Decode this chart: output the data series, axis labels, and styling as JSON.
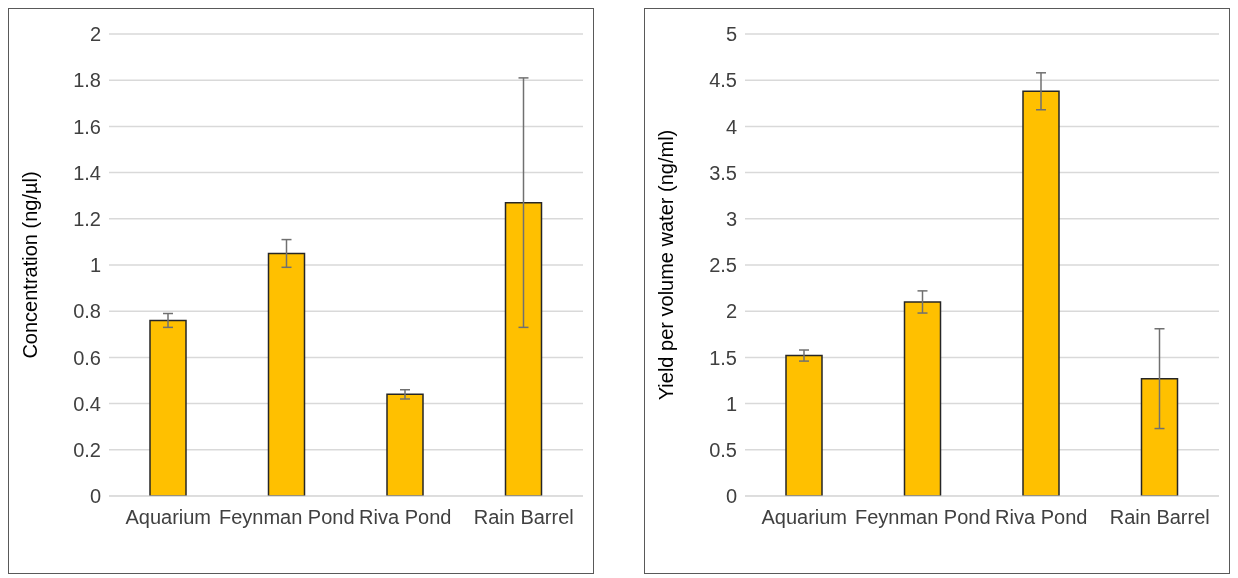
{
  "chart_data": [
    {
      "type": "bar",
      "categories": [
        "Aquarium",
        "Feynman Pond",
        "Riva Pond",
        "Rain Barrel"
      ],
      "values": [
        0.76,
        1.05,
        0.44,
        1.27
      ],
      "errors": [
        0.03,
        0.06,
        0.02,
        0.54
      ],
      "color": "#ffc000",
      "ylabel": "Concentration (ng/µl)",
      "ylim": [
        0,
        2
      ],
      "yticks": [
        0,
        0.2,
        0.4,
        0.6,
        0.8,
        1,
        1.2,
        1.4,
        1.6,
        1.8,
        2
      ],
      "grid": "y"
    },
    {
      "type": "bar",
      "categories": [
        "Aquarium",
        "Feynman Pond",
        "Riva Pond",
        "Rain Barrel"
      ],
      "values": [
        1.52,
        2.1,
        4.38,
        1.27
      ],
      "errors": [
        0.06,
        0.12,
        0.2,
        0.54
      ],
      "color": "#ffc000",
      "ylabel": "Yield per volume water (ng/ml)",
      "ylim": [
        0,
        5
      ],
      "yticks": [
        0,
        0.5,
        1,
        1.5,
        2,
        2.5,
        3,
        3.5,
        4,
        4.5,
        5
      ],
      "grid": "y"
    }
  ]
}
